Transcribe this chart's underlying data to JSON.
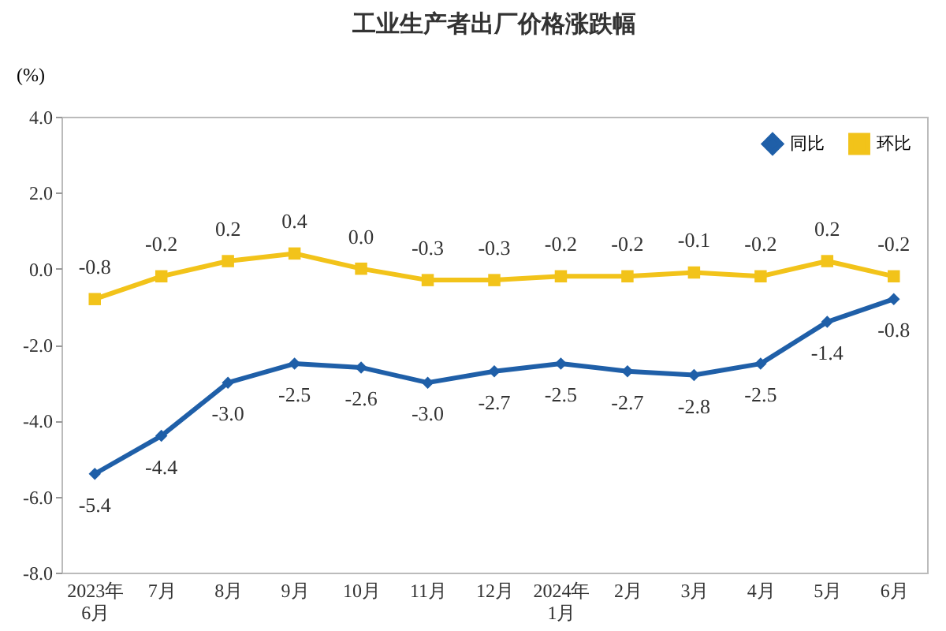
{
  "chart_data": {
    "type": "line",
    "title": "工业生产者出厂价格涨跌幅",
    "ylabel": "(%)",
    "categories": [
      "2023年6月",
      "7月",
      "8月",
      "9月",
      "10月",
      "11月",
      "12月",
      "2024年1月",
      "2月",
      "3月",
      "4月",
      "5月",
      "6月"
    ],
    "series": [
      {
        "name": "同比",
        "color": "#1f5fa8",
        "marker": "diamond",
        "values": [
          -5.4,
          -4.4,
          -3.0,
          -2.5,
          -2.6,
          -3.0,
          -2.7,
          -2.5,
          -2.7,
          -2.8,
          -2.5,
          -1.4,
          -0.8
        ],
        "value_labels": [
          "-5.4",
          "-4.4",
          "-3.0",
          "-2.5",
          "-2.6",
          "-3.0",
          "-2.7",
          "-2.5",
          "-2.7",
          "-2.8",
          "-2.5",
          "-1.4",
          "-0.8"
        ]
      },
      {
        "name": "环比",
        "color": "#f2c31a",
        "marker": "square",
        "values": [
          -0.8,
          -0.2,
          0.2,
          0.4,
          0.0,
          -0.3,
          -0.3,
          -0.2,
          -0.2,
          -0.1,
          -0.2,
          0.2,
          -0.2
        ],
        "value_labels": [
          "-0.8",
          "-0.2",
          "0.2",
          "0.4",
          "0.0",
          "-0.3",
          "-0.3",
          "-0.2",
          "-0.2",
          "-0.1",
          "-0.2",
          "0.2",
          "-0.2"
        ]
      }
    ],
    "ylim": [
      -8,
      4
    ],
    "yticks": [
      {
        "value": -8,
        "label": "-8.0"
      },
      {
        "value": -6,
        "label": "-6.0"
      },
      {
        "value": -4,
        "label": "-4.0"
      },
      {
        "value": -2,
        "label": "-2.0"
      },
      {
        "value": 0,
        "label": "0.0"
      },
      {
        "value": 2,
        "label": "2.0"
      },
      {
        "value": 4,
        "label": "4.0"
      }
    ],
    "legend": "top right",
    "line_style": "solid"
  }
}
